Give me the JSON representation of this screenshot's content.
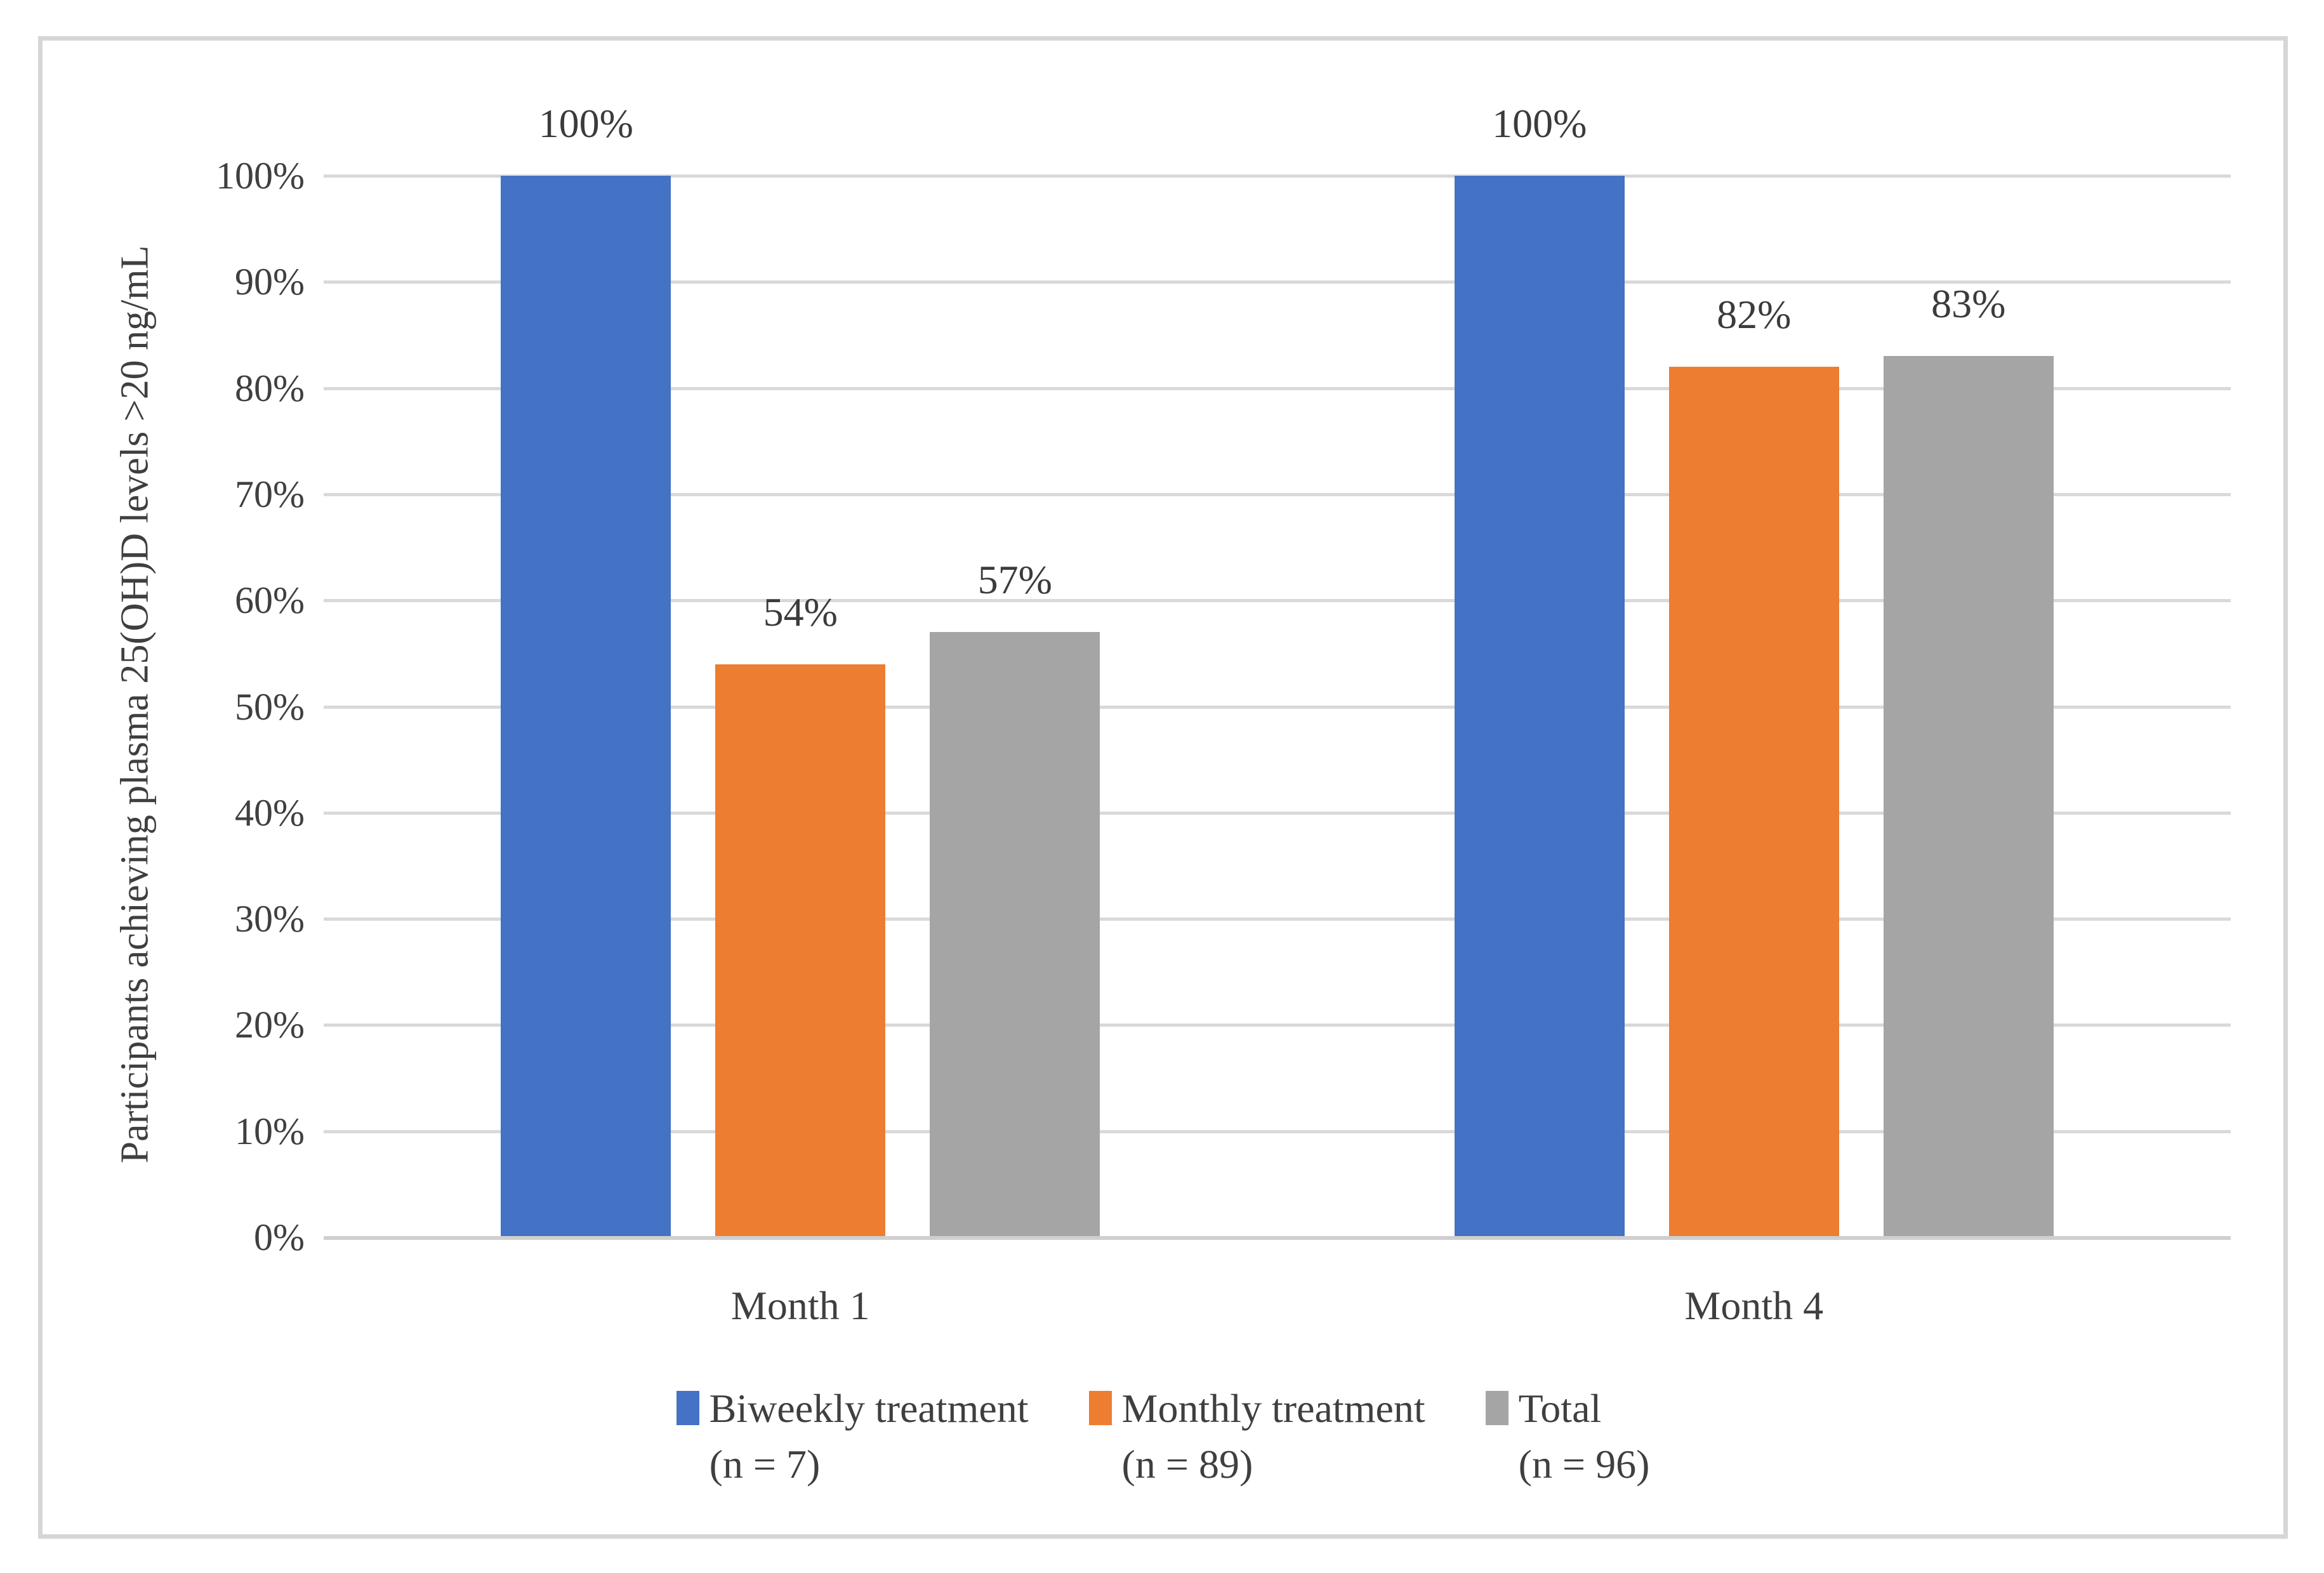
{
  "figure": {
    "background": "#ffffff",
    "border_color": "#d6d6d6"
  },
  "chart_data": {
    "type": "bar",
    "title": "",
    "xlabel": "",
    "ylabel": "Participants achieving plasma 25(OH)D levels >20 ng/mL",
    "categories": [
      "Month 1",
      "Month 4"
    ],
    "series": [
      {
        "name": "Biweekly treatment",
        "n_label": "(n = 7)",
        "color": "#4472C4",
        "values": [
          100,
          100
        ],
        "data_labels": [
          "100%",
          "100%"
        ]
      },
      {
        "name": "Monthly treatment",
        "n_label": "(n = 89)",
        "color": "#ED7D31",
        "values": [
          54,
          82
        ],
        "data_labels": [
          "54%",
          "82%"
        ]
      },
      {
        "name": "Total",
        "n_label": "(n = 96)",
        "color": "#A5A5A5",
        "values": [
          57,
          83
        ],
        "data_labels": [
          "57%",
          "83%"
        ]
      }
    ],
    "y_axis": {
      "min": 0,
      "max": 100,
      "step": 10,
      "tick_labels": [
        "0%",
        "10%",
        "20%",
        "30%",
        "40%",
        "50%",
        "60%",
        "70%",
        "80%",
        "90%",
        "100%"
      ]
    },
    "grid": true,
    "gridline_color": "#d9d9d9",
    "axis_line_color": "#cfcfcf",
    "text_color": "#3f3f3f",
    "legend_position": "bottom"
  }
}
